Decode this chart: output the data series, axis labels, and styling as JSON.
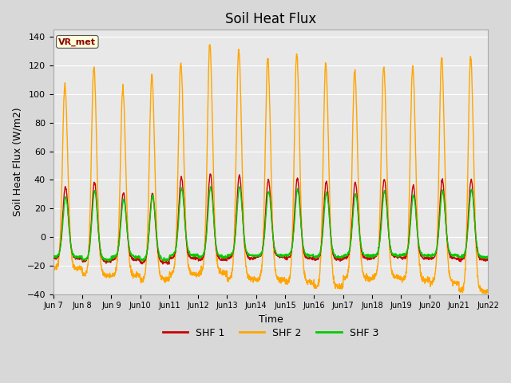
{
  "title": "Soil Heat Flux",
  "xlabel": "Time",
  "ylabel": "Soil Heat Flux (W/m2)",
  "ylim": [
    -40,
    145
  ],
  "yticks": [
    -40,
    -20,
    0,
    20,
    40,
    60,
    80,
    100,
    120,
    140
  ],
  "colors": {
    "SHF 1": "#cc0000",
    "SHF 2": "#ffa500",
    "SHF 3": "#00cc00"
  },
  "legend_labels": [
    "SHF 1",
    "SHF 2",
    "SHF 3"
  ],
  "annotation_text": "VR_met",
  "annotation_color": "#8b0000",
  "annotation_bg": "#ffffdd",
  "background_color": "#e8e8e8",
  "grid_color": "#ffffff",
  "title_fontsize": 12,
  "axis_fontsize": 9,
  "tick_fontsize": 8,
  "n_days": 15,
  "points_per_day": 144,
  "start_day": 7,
  "shf1_day_amp": [
    35,
    38,
    31,
    30,
    42,
    44,
    43,
    40,
    41,
    39,
    38,
    40,
    36,
    40,
    40
  ],
  "shf1_night_min": [
    -15,
    -17,
    -16,
    -18,
    -15,
    -16,
    -15,
    -14,
    -15,
    -16,
    -15,
    -14,
    -15,
    -15,
    -16
  ],
  "shf2_day_amp": [
    106,
    119,
    104,
    113,
    122,
    135,
    131,
    125,
    128,
    121,
    116,
    120,
    119,
    125,
    126
  ],
  "shf2_night_min": [
    -22,
    -27,
    -27,
    -30,
    -26,
    -25,
    -29,
    -30,
    -32,
    -35,
    -29,
    -28,
    -30,
    -32,
    -38
  ],
  "shf3_day_amp": [
    28,
    32,
    26,
    29,
    34,
    35,
    35,
    32,
    33,
    31,
    30,
    32,
    29,
    32,
    33
  ],
  "shf3_night_min": [
    -14,
    -16,
    -14,
    -16,
    -13,
    -14,
    -13,
    -13,
    -13,
    -14,
    -13,
    -13,
    -13,
    -13,
    -14
  ]
}
